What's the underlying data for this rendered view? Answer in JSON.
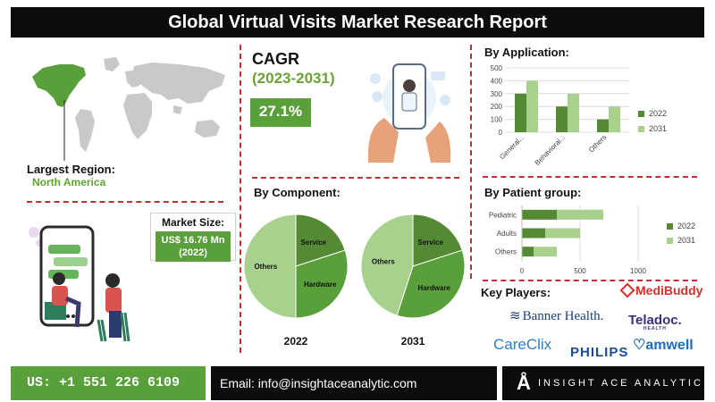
{
  "header": {
    "title": "Global Virtual Visits Market Research Report"
  },
  "region": {
    "label": "Largest Region:",
    "value": "North America"
  },
  "market_size": {
    "label": "Market Size:",
    "value_line1": "US$ 16.76 Mn",
    "value_line2": "(2022)"
  },
  "cagr": {
    "title": "CAGR",
    "years": "(2023-2031)",
    "value": "27.1%"
  },
  "colors": {
    "dark_green": "#558a35",
    "light_green": "#a9d18e",
    "mid_green": "#5aa03a",
    "accent_red": "#b83232"
  },
  "component": {
    "title": "By Component:",
    "years": [
      "2022",
      "2031"
    ]
  },
  "application": {
    "title": "By Application:"
  },
  "patient": {
    "title": "By Patient group:"
  },
  "key_players": {
    "title": "Key Players:",
    "logos": [
      "MediBuddy",
      "Banner Health.",
      "Teladoc.",
      "HEALTH",
      "CareClix",
      "PHILIPS",
      "amwell"
    ]
  },
  "footer": {
    "phone": "US: +1 551 226 6109",
    "email": "Email: info@insightaceanalytic.com",
    "brand": "INSIGHT ACE ANALYTIC"
  },
  "chart_data": [
    {
      "id": "application",
      "type": "bar",
      "title": "By Application:",
      "categories": [
        "General...",
        "Behavioral...",
        "Others"
      ],
      "series": [
        {
          "name": "2022",
          "values": [
            300,
            200,
            100
          ]
        },
        {
          "name": "2031",
          "values": [
            400,
            300,
            200
          ]
        }
      ],
      "ylim": [
        0,
        500
      ],
      "yticks": [
        "0",
        "100",
        "200",
        "300",
        "400",
        "500"
      ],
      "legend": "right",
      "grid": true
    },
    {
      "id": "patient",
      "type": "bar",
      "orientation": "horizontal",
      "stacked": true,
      "title": "By Patient group:",
      "categories": [
        "Pediatric",
        "Adults",
        "Others"
      ],
      "series": [
        {
          "name": "2022",
          "values": [
            300,
            200,
            100
          ]
        },
        {
          "name": "2031",
          "values": [
            400,
            300,
            200
          ]
        }
      ],
      "xlim": [
        0,
        1000
      ],
      "xticks": [
        "0",
        "500",
        "1000"
      ],
      "legend": "right"
    },
    {
      "id": "component-2022",
      "type": "pie",
      "title": "2022",
      "slices": [
        {
          "label": "Service",
          "value": 20
        },
        {
          "label": "Hardware",
          "value": 30
        },
        {
          "label": "Others",
          "value": 50
        }
      ]
    },
    {
      "id": "component-2031",
      "type": "pie",
      "title": "2031",
      "slices": [
        {
          "label": "Service",
          "value": 20
        },
        {
          "label": "Hardware",
          "value": 35
        },
        {
          "label": "Others",
          "value": 45
        }
      ]
    }
  ]
}
